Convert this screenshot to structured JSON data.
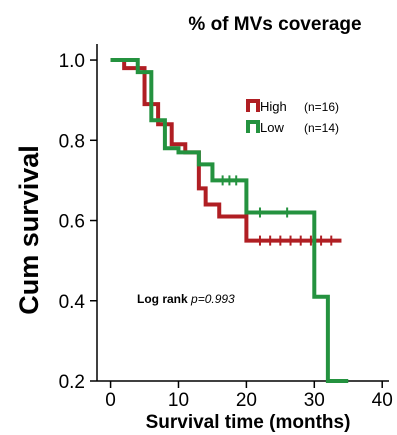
{
  "chart_data": {
    "type": "line",
    "title": "% of MVs coverage",
    "xlabel": "Survival time (months)",
    "ylabel": "Cum survival",
    "xlim": [
      -2,
      41
    ],
    "ylim": [
      0.2,
      1.04
    ],
    "x_ticks": [
      0,
      10,
      20,
      30,
      40
    ],
    "y_ticks": [
      0.2,
      0.4,
      0.6,
      0.8,
      1.0
    ],
    "x_tick_labels": [
      "0",
      "10",
      "20",
      "30",
      "40"
    ],
    "y_tick_labels": [
      "0.2",
      "0.4",
      "0.6",
      "0.8",
      "1.0"
    ],
    "grid": false,
    "legend_position": "top-right",
    "annotation": {
      "prefix": "Log rank ",
      "stat": "p=0.993"
    },
    "series": [
      {
        "name": "High",
        "n_label": "(n=16)",
        "color": "#b01e23",
        "steps": [
          [
            0,
            1.0
          ],
          [
            2,
            0.98
          ],
          [
            5,
            0.89
          ],
          [
            7,
            0.84
          ],
          [
            9,
            0.79
          ],
          [
            11,
            0.77
          ],
          [
            13,
            0.68
          ],
          [
            14,
            0.64
          ],
          [
            16,
            0.61
          ],
          [
            20,
            0.55
          ],
          [
            34,
            0.55
          ]
        ],
        "censored_x": [
          22,
          23.5,
          25,
          26.5,
          28,
          29.5,
          31,
          32.5
        ]
      },
      {
        "name": "Low",
        "n_label": "(n=14)",
        "color": "#24923f",
        "steps": [
          [
            0,
            1.0
          ],
          [
            4,
            0.97
          ],
          [
            6,
            0.85
          ],
          [
            8,
            0.78
          ],
          [
            10,
            0.77
          ],
          [
            13,
            0.74
          ],
          [
            15,
            0.7
          ],
          [
            20,
            0.62
          ],
          [
            30,
            0.41
          ],
          [
            32,
            0.2
          ],
          [
            35,
            0.2
          ]
        ],
        "censored_x": [
          16.5,
          17.5,
          18.5,
          22,
          26
        ]
      }
    ]
  }
}
